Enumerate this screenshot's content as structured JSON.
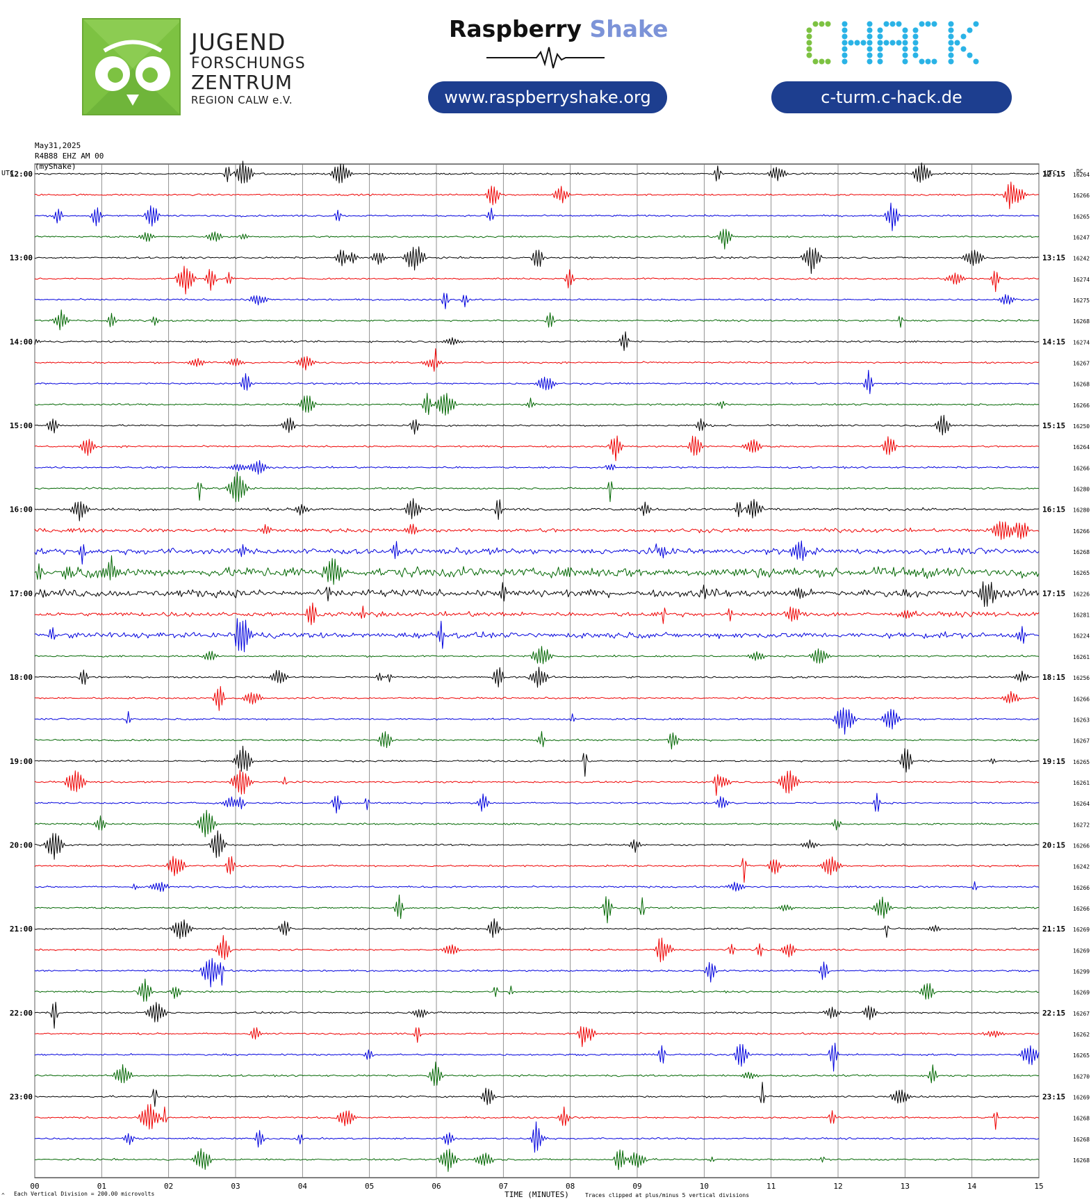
{
  "header": {
    "jfz": {
      "line1": "JUGEND",
      "line2": "FORSCHUNGS",
      "line3": "ZENTRUM",
      "line4": "REGION CALW e.V."
    },
    "raspberry_shake": {
      "word1": "Raspberry",
      "word2": "Shake",
      "url": "www.raspberryshake.org"
    },
    "chack": {
      "logo_text": "CHACK",
      "url": "c-turm.c-hack.de"
    },
    "colors": {
      "brand_green": "#7dc242",
      "pill_blue": "#1d3e8f",
      "shake_blue": "#7c93d8",
      "chack_green": "#7dc242",
      "chack_cyan": "#2ab3e6"
    }
  },
  "chart_data": {
    "type": "helicorder",
    "meta_lines": [
      "May31,2025",
      "R4B88 EHZ AM 00",
      "(myShake)"
    ],
    "left_axis_label": "UTC",
    "right_axis_label": "UTC",
    "dc_label": "DC",
    "xlabel": "TIME (MINUTES)",
    "x_ticks": [
      "00",
      "01",
      "02",
      "03",
      "04",
      "05",
      "06",
      "07",
      "08",
      "09",
      "10",
      "11",
      "12",
      "13",
      "14",
      "15"
    ],
    "xlim": [
      0,
      15
    ],
    "trace_colors": [
      "#000000",
      "#ee0000",
      "#0000dd",
      "#006600"
    ],
    "hour_labels_left": [
      "12:00",
      "13:00",
      "14:00",
      "15:00",
      "16:00",
      "17:00",
      "18:00",
      "19:00",
      "20:00",
      "21:00",
      "22:00",
      "23:00"
    ],
    "hour_labels_right": [
      "12:15",
      "13:15",
      "14:15",
      "15:15",
      "16:15",
      "17:15",
      "18:15",
      "19:15",
      "20:15",
      "21:15",
      "22:15",
      "23:15"
    ],
    "dc_values": [
      "16264",
      "16266",
      "16265",
      "16247",
      "16242",
      "16274",
      "16275",
      "16268",
      "16274",
      "16267",
      "16268",
      "16266",
      "16250",
      "16264",
      "16266",
      "16280",
      "16280",
      "16266",
      "16268",
      "16265",
      "16226",
      "16281",
      "16224",
      "16261",
      "16256",
      "16266",
      "16263",
      "16267",
      "16265",
      "16261",
      "16264",
      "16272",
      "16266",
      "16242",
      "16266",
      "16266",
      "16269",
      "16269",
      "16299",
      "16269",
      "16267",
      "16262",
      "16265",
      "16270",
      "16269",
      "16268",
      "16268",
      "16268"
    ],
    "footer_left": "Each Vertical Division =  200.00 microvolts",
    "footer_right": "Traces clipped at plus/minus 5 vertical divisions",
    "footer_mark": "^"
  }
}
